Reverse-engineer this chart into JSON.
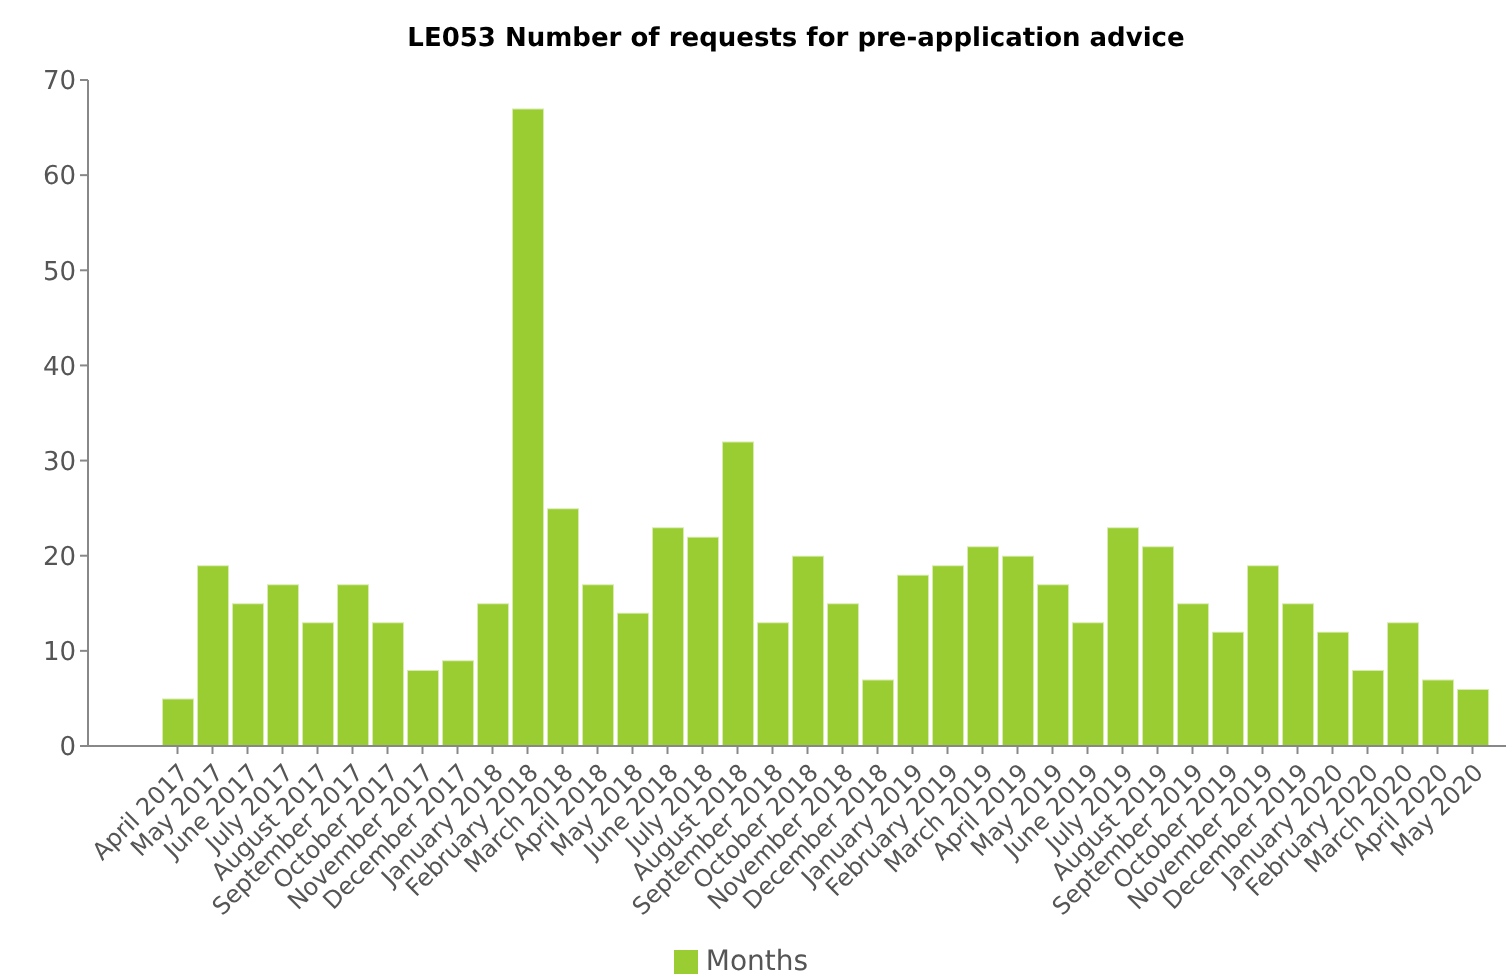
{
  "chart_data": {
    "type": "bar",
    "title": "LE053 Number of requests for pre-application advice",
    "categories": [
      "April 2017",
      "May 2017",
      "June 2017",
      "July 2017",
      "August 2017",
      "September 2017",
      "October 2017",
      "November 2017",
      "December 2017",
      "January 2018",
      "February 2018",
      "March 2018",
      "April 2018",
      "May 2018",
      "June 2018",
      "July 2018",
      "August 2018",
      "September 2018",
      "October 2018",
      "November 2018",
      "December 2018",
      "January 2019",
      "February 2019",
      "March 2019",
      "April 2019",
      "May 2019",
      "June 2019",
      "July 2019",
      "August 2019",
      "September 2019",
      "October 2019",
      "November 2019",
      "December 2019",
      "January 2020",
      "February 2020",
      "March 2020",
      "April 2020",
      "May 2020"
    ],
    "series": [
      {
        "name": "Months",
        "color": "#9acd32",
        "values": [
          5,
          19,
          15,
          17,
          13,
          17,
          13,
          8,
          9,
          15,
          67,
          25,
          17,
          14,
          23,
          22,
          32,
          13,
          20,
          15,
          7,
          18,
          19,
          21,
          20,
          17,
          13,
          23,
          21,
          15,
          12,
          19,
          15,
          12,
          8,
          13,
          7,
          6
        ]
      }
    ],
    "ylim": [
      0,
      70
    ],
    "yticks": [
      0,
      10,
      20,
      30,
      40,
      50,
      60,
      70
    ],
    "grid": false,
    "legend": "bottom"
  }
}
